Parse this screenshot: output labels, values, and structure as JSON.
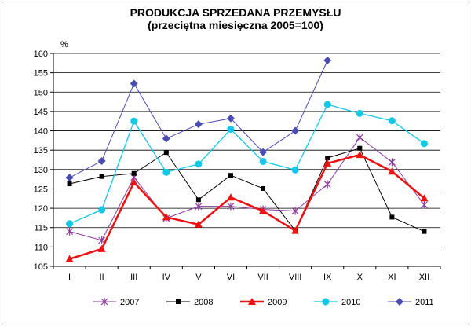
{
  "chart_data": {
    "type": "line",
    "title": "PRODUKCJA SPRZEDANA PRZEMYSŁU",
    "subtitle": "(przeciętna miesięczna 2005=100)",
    "ylabel": "%",
    "xlabel": "",
    "ylim": [
      105,
      160
    ],
    "yticks": [
      105,
      110,
      115,
      120,
      125,
      130,
      135,
      140,
      145,
      150,
      155,
      160
    ],
    "grid": true,
    "legend_position": "bottom",
    "categories": [
      "I",
      "II",
      "III",
      "IV",
      "V",
      "VI",
      "VII",
      "VIII",
      "IX",
      "X",
      "XI",
      "XII"
    ],
    "series": [
      {
        "name": "2007",
        "color": "#8b3d9c",
        "marker": "star",
        "values": [
          114.0,
          111.7,
          128.0,
          117.4,
          120.5,
          120.5,
          119.7,
          119.3,
          126.2,
          138.3,
          131.9,
          120.9
        ]
      },
      {
        "name": "2008",
        "color": "#000000",
        "marker": "square",
        "values": [
          126.3,
          128.2,
          129.0,
          134.4,
          122.2,
          128.5,
          125.1,
          114.2,
          133.0,
          135.5,
          117.7,
          114.0
        ]
      },
      {
        "name": "2009",
        "color": "#ee1111",
        "marker": "triangle",
        "values": [
          106.9,
          109.5,
          126.7,
          117.7,
          115.8,
          122.8,
          119.3,
          114.2,
          131.6,
          133.8,
          129.5,
          122.6
        ]
      },
      {
        "name": "2010",
        "color": "#11c8e8",
        "marker": "circle",
        "values": [
          116.0,
          119.6,
          142.5,
          129.3,
          131.4,
          140.4,
          132.1,
          129.9,
          146.8,
          144.5,
          142.6,
          136.7
        ]
      },
      {
        "name": "2011",
        "color": "#4b4bb4",
        "marker": "diamond",
        "values": [
          127.9,
          132.2,
          152.2,
          138.0,
          141.7,
          143.2,
          134.5,
          140.0,
          158.2,
          null,
          null,
          null
        ]
      }
    ]
  }
}
